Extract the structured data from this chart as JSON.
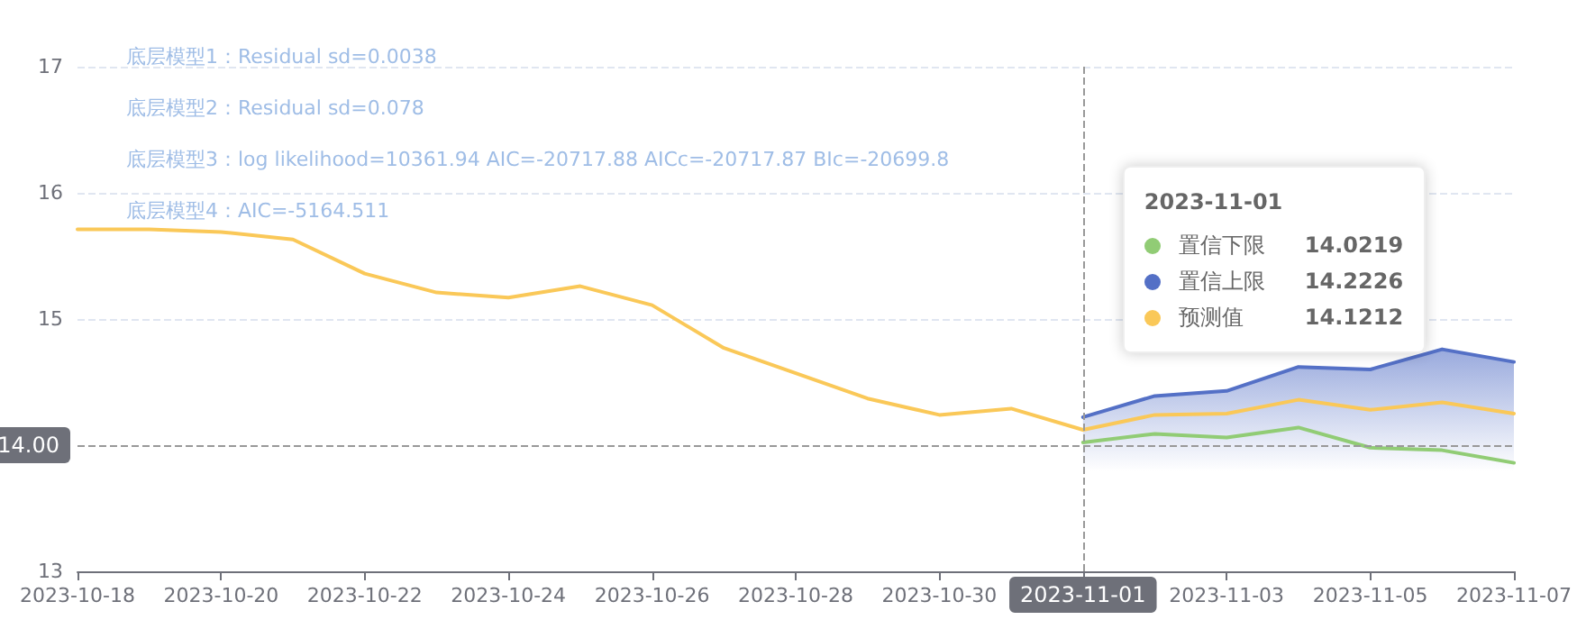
{
  "chart_data": {
    "type": "line",
    "annotations": [
      "底层模型1：Residual sd=0.0038",
      "底层模型2：Residual sd=0.078",
      "底层模型3：log likelihood=10361.94 AIC=-20717.88 AICc=-20717.87 BIc=-20699.8",
      "底层模型4：AIC=-5164.511",
      "14.0219",
      "14.2226",
      "14.1212"
    ],
    "xlim": [
      "2023-10-18",
      "2023-11-07"
    ],
    "xticks": [
      "2023-10-18",
      "2023-10-20",
      "2023-10-22",
      "2023-10-24",
      "2023-10-26",
      "2023-10-28",
      "2023-10-30",
      {
        "value": "2023-11-01",
        "label": null
      },
      "2023-11-03",
      "2023-11-05",
      "2023-11-07"
    ],
    "ylim": [
      13,
      17
    ],
    "yticks": [
      13,
      15,
      16,
      17
    ],
    "legend": "top right",
    "grid": "y",
    "marker": "none",
    "series": [
      {
        "name": "置信下限",
        "type": "line",
        "color": "#91cc75",
        "x": [
          "2023-11-01",
          "2023-11-02",
          "2023-11-03",
          "2023-11-04",
          "2023-11-05",
          "2023-11-06",
          "2023-11-07"
        ],
        "values": [
          14.0219,
          14.09,
          14.06,
          14.14,
          13.98,
          13.96,
          13.86
        ]
      },
      {
        "name": "置信上限",
        "type": "area",
        "color": "#5470c6",
        "x": [
          "2023-11-01",
          "2023-11-02",
          "2023-11-03",
          "2023-11-04",
          "2023-11-05",
          "2023-11-06",
          "2023-11-07"
        ],
        "values": [
          14.2226,
          14.39,
          14.43,
          14.62,
          14.6,
          14.76,
          14.66
        ]
      },
      {
        "name": "预测值",
        "type": "line",
        "color": "#fac858",
        "x": [
          "2023-10-18",
          "2023-10-19",
          "2023-10-20",
          "2023-10-21",
          "2023-10-22",
          "2023-10-23",
          "2023-10-24",
          "2023-10-25",
          "2023-10-26",
          "2023-10-27",
          "2023-10-28",
          "2023-10-29",
          "2023-10-30",
          "2023-10-31",
          "2023-11-01",
          "2023-11-02",
          "2023-11-03",
          "2023-11-04",
          "2023-11-05",
          "2023-11-06",
          "2023-11-07"
        ],
        "values": [
          15.71,
          15.71,
          15.69,
          15.63,
          15.36,
          15.21,
          15.17,
          15.26,
          15.11,
          14.77,
          14.57,
          14.37,
          14.24,
          14.29,
          14.1212,
          14.24,
          14.25,
          14.36,
          14.28,
          14.34,
          14.25
        ]
      }
    ],
    "ref_lines": [
      {
        "axis": "x",
        "value": "2023-11-01",
        "label": "2023-11-01"
      },
      {
        "axis": "y",
        "value": 14,
        "label": "14.00"
      }
    ]
  }
}
